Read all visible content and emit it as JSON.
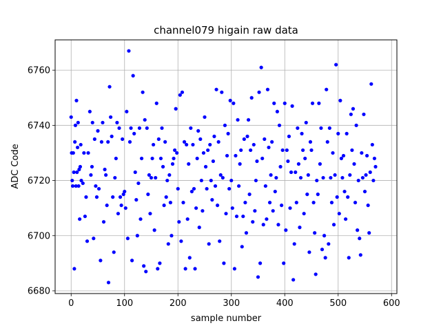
{
  "chart_data": {
    "type": "scatter",
    "title": "channel079 higain raw data",
    "xlabel": "sample number",
    "ylabel": "ADC Code",
    "xlim": [
      -30,
      610
    ],
    "ylim": [
      6679,
      6771
    ],
    "x_ticks": [
      0,
      100,
      200,
      300,
      400,
      500,
      600
    ],
    "y_ticks": [
      6680,
      6700,
      6720,
      6740,
      6760
    ],
    "grid": true,
    "series": [
      {
        "color": "#0000ff",
        "marker": "circle",
        "points": [
          [
            0,
            6743
          ],
          [
            1,
            6730
          ],
          [
            2,
            6720
          ],
          [
            3,
            6718
          ],
          [
            4,
            6730
          ],
          [
            5,
            6723
          ],
          [
            6,
            6688
          ],
          [
            7,
            6734
          ],
          [
            8,
            6740
          ],
          [
            9,
            6718
          ],
          [
            10,
            6749
          ],
          [
            11,
            6723
          ],
          [
            12,
            6732
          ],
          [
            13,
            6741
          ],
          [
            14,
            6718
          ],
          [
            15,
            6724
          ],
          [
            16,
            6706
          ],
          [
            17,
            6725
          ],
          [
            18,
            6733
          ],
          [
            19,
            6720
          ],
          [
            22,
            6719
          ],
          [
            24,
            6730
          ],
          [
            26,
            6707
          ],
          [
            28,
            6714
          ],
          [
            30,
            6698
          ],
          [
            32,
            6730
          ],
          [
            35,
            6745
          ],
          [
            37,
            6722
          ],
          [
            39,
            6725
          ],
          [
            40,
            6741
          ],
          [
            42,
            6699
          ],
          [
            44,
            6735
          ],
          [
            46,
            6718
          ],
          [
            48,
            6714
          ],
          [
            50,
            6738
          ],
          [
            52,
            6717
          ],
          [
            55,
            6691
          ],
          [
            57,
            6734
          ],
          [
            59,
            6741
          ],
          [
            61,
            6705
          ],
          [
            63,
            6724
          ],
          [
            65,
            6722
          ],
          [
            67,
            6711
          ],
          [
            69,
            6734
          ],
          [
            70,
            6683
          ],
          [
            72,
            6754
          ],
          [
            74,
            6743
          ],
          [
            76,
            6736
          ],
          [
            78,
            6714
          ],
          [
            80,
            6694
          ],
          [
            82,
            6721
          ],
          [
            84,
            6728
          ],
          [
            86,
            6741
          ],
          [
            88,
            6708
          ],
          [
            90,
            6739
          ],
          [
            92,
            6714
          ],
          [
            94,
            6711
          ],
          [
            96,
            6735
          ],
          [
            98,
            6715
          ],
          [
            100,
            6716
          ],
          [
            102,
            6710
          ],
          [
            104,
            6745
          ],
          [
            106,
            6699
          ],
          [
            108,
            6767
          ],
          [
            110,
            6734
          ],
          [
            112,
            6739
          ],
          [
            114,
            6691
          ],
          [
            116,
            6758
          ],
          [
            118,
            6737
          ],
          [
            120,
            6723
          ],
          [
            122,
            6713
          ],
          [
            124,
            6700
          ],
          [
            126,
            6719
          ],
          [
            128,
            6739
          ],
          [
            130,
            6706
          ],
          [
            132,
            6728
          ],
          [
            134,
            6752
          ],
          [
            136,
            6689
          ],
          [
            138,
            6742
          ],
          [
            140,
            6687
          ],
          [
            142,
            6739
          ],
          [
            144,
            6715
          ],
          [
            146,
            6722
          ],
          [
            148,
            6708
          ],
          [
            150,
            6721
          ],
          [
            152,
            6728
          ],
          [
            154,
            6733
          ],
          [
            156,
            6702
          ],
          [
            158,
            6721
          ],
          [
            160,
            6748
          ],
          [
            162,
            6688
          ],
          [
            164,
            6735
          ],
          [
            166,
            6690
          ],
          [
            168,
            6728
          ],
          [
            170,
            6739
          ],
          [
            172,
            6725
          ],
          [
            174,
            6711
          ],
          [
            176,
            6734
          ],
          [
            178,
            6714
          ],
          [
            180,
            6720
          ],
          [
            182,
            6697
          ],
          [
            184,
            6722
          ],
          [
            186,
            6712
          ],
          [
            188,
            6700
          ],
          [
            190,
            6726
          ],
          [
            192,
            6728
          ],
          [
            194,
            6731
          ],
          [
            196,
            6746
          ],
          [
            198,
            6730
          ],
          [
            200,
            6717
          ],
          [
            202,
            6705
          ],
          [
            204,
            6751
          ],
          [
            206,
            6698
          ],
          [
            208,
            6752
          ],
          [
            210,
            6712
          ],
          [
            212,
            6734
          ],
          [
            214,
            6688
          ],
          [
            216,
            6733
          ],
          [
            218,
            6706
          ],
          [
            220,
            6726
          ],
          [
            222,
            6692
          ],
          [
            224,
            6739
          ],
          [
            226,
            6716
          ],
          [
            228,
            6733
          ],
          [
            230,
            6717
          ],
          [
            232,
            6688
          ],
          [
            234,
            6710
          ],
          [
            236,
            6728
          ],
          [
            238,
            6738
          ],
          [
            240,
            6703
          ],
          [
            242,
            6735
          ],
          [
            244,
            6720
          ],
          [
            246,
            6709
          ],
          [
            248,
            6730
          ],
          [
            250,
            6743
          ],
          [
            252,
            6725
          ],
          [
            254,
            6717
          ],
          [
            256,
            6731
          ],
          [
            258,
            6697
          ],
          [
            260,
            6733
          ],
          [
            262,
            6720
          ],
          [
            264,
            6713
          ],
          [
            266,
            6727
          ],
          [
            268,
            6736
          ],
          [
            270,
            6718
          ],
          [
            272,
            6753
          ],
          [
            274,
            6711
          ],
          [
            276,
            6734
          ],
          [
            278,
            6698
          ],
          [
            280,
            6722
          ],
          [
            282,
            6752
          ],
          [
            284,
            6721
          ],
          [
            286,
            6690
          ],
          [
            288,
            6740
          ],
          [
            290,
            6708
          ],
          [
            292,
            6729
          ],
          [
            294,
            6737
          ],
          [
            296,
            6717
          ],
          [
            298,
            6749
          ],
          [
            300,
            6720
          ],
          [
            302,
            6710
          ],
          [
            304,
            6748
          ],
          [
            306,
            6688
          ],
          [
            308,
            6729
          ],
          [
            310,
            6707
          ],
          [
            312,
            6742
          ],
          [
            314,
            6718
          ],
          [
            316,
            6726
          ],
          [
            318,
            6731
          ],
          [
            320,
            6696
          ],
          [
            322,
            6707
          ],
          [
            324,
            6735
          ],
          [
            326,
            6712
          ],
          [
            328,
            6701
          ],
          [
            330,
            6736
          ],
          [
            332,
            6742
          ],
          [
            334,
            6715
          ],
          [
            336,
            6731
          ],
          [
            338,
            6750
          ],
          [
            340,
            6705
          ],
          [
            342,
            6733
          ],
          [
            344,
            6709
          ],
          [
            346,
            6720
          ],
          [
            348,
            6727
          ],
          [
            350,
            6685
          ],
          [
            352,
            6752
          ],
          [
            354,
            6690
          ],
          [
            356,
            6761
          ],
          [
            358,
            6728
          ],
          [
            360,
            6704
          ],
          [
            362,
            6735
          ],
          [
            364,
            6718
          ],
          [
            366,
            6706
          ],
          [
            368,
            6753
          ],
          [
            370,
            6732
          ],
          [
            372,
            6712
          ],
          [
            374,
            6722
          ],
          [
            376,
            6734
          ],
          [
            378,
            6709
          ],
          [
            380,
            6748
          ],
          [
            382,
            6716
          ],
          [
            384,
            6721
          ],
          [
            386,
            6745
          ],
          [
            388,
            6704
          ],
          [
            390,
            6740
          ],
          [
            392,
            6725
          ],
          [
            394,
            6711
          ],
          [
            396,
            6731
          ],
          [
            398,
            6690
          ],
          [
            400,
            6748
          ],
          [
            402,
            6702
          ],
          [
            404,
            6731
          ],
          [
            406,
            6727
          ],
          [
            408,
            6736
          ],
          [
            410,
            6710
          ],
          [
            412,
            6723
          ],
          [
            414,
            6747
          ],
          [
            416,
            6684
          ],
          [
            418,
            6697
          ],
          [
            420,
            6723
          ],
          [
            422,
            6712
          ],
          [
            424,
            6739
          ],
          [
            426,
            6726
          ],
          [
            428,
            6703
          ],
          [
            430,
            6721
          ],
          [
            432,
            6737
          ],
          [
            434,
            6731
          ],
          [
            436,
            6708
          ],
          [
            438,
            6728
          ],
          [
            440,
            6741
          ],
          [
            442,
            6715
          ],
          [
            444,
            6722
          ],
          [
            446,
            6694
          ],
          [
            448,
            6734
          ],
          [
            450,
            6731
          ],
          [
            452,
            6748
          ],
          [
            454,
            6712
          ],
          [
            456,
            6701
          ],
          [
            458,
            6686
          ],
          [
            460,
            6720
          ],
          [
            462,
            6715
          ],
          [
            464,
            6748
          ],
          [
            466,
            6726
          ],
          [
            468,
            6739
          ],
          [
            470,
            6695
          ],
          [
            472,
            6721
          ],
          [
            474,
            6700
          ],
          [
            476,
            6692
          ],
          [
            478,
            6753
          ],
          [
            480,
            6734
          ],
          [
            482,
            6697
          ],
          [
            484,
            6739
          ],
          [
            486,
            6721
          ],
          [
            488,
            6712
          ],
          [
            490,
            6730
          ],
          [
            492,
            6704
          ],
          [
            494,
            6722
          ],
          [
            496,
            6762
          ],
          [
            498,
            6714
          ],
          [
            500,
            6737
          ],
          [
            502,
            6708
          ],
          [
            504,
            6749
          ],
          [
            506,
            6728
          ],
          [
            508,
            6721
          ],
          [
            510,
            6729
          ],
          [
            512,
            6716
          ],
          [
            514,
            6706
          ],
          [
            516,
            6737
          ],
          [
            518,
            6714
          ],
          [
            520,
            6692
          ],
          [
            522,
            6722
          ],
          [
            524,
            6744
          ],
          [
            526,
            6731
          ],
          [
            528,
            6746
          ],
          [
            530,
            6726
          ],
          [
            532,
            6712
          ],
          [
            534,
            6740
          ],
          [
            536,
            6702
          ],
          [
            538,
            6720
          ],
          [
            540,
            6699
          ],
          [
            542,
            6693
          ],
          [
            544,
            6730
          ],
          [
            546,
            6721
          ],
          [
            548,
            6744
          ],
          [
            550,
            6716
          ],
          [
            552,
            6722
          ],
          [
            554,
            6729
          ],
          [
            556,
            6711
          ],
          [
            558,
            6701
          ],
          [
            560,
            6723
          ],
          [
            562,
            6755
          ],
          [
            564,
            6733
          ],
          [
            566,
            6720
          ],
          [
            568,
            6728
          ],
          [
            570,
            6725
          ]
        ]
      }
    ]
  }
}
